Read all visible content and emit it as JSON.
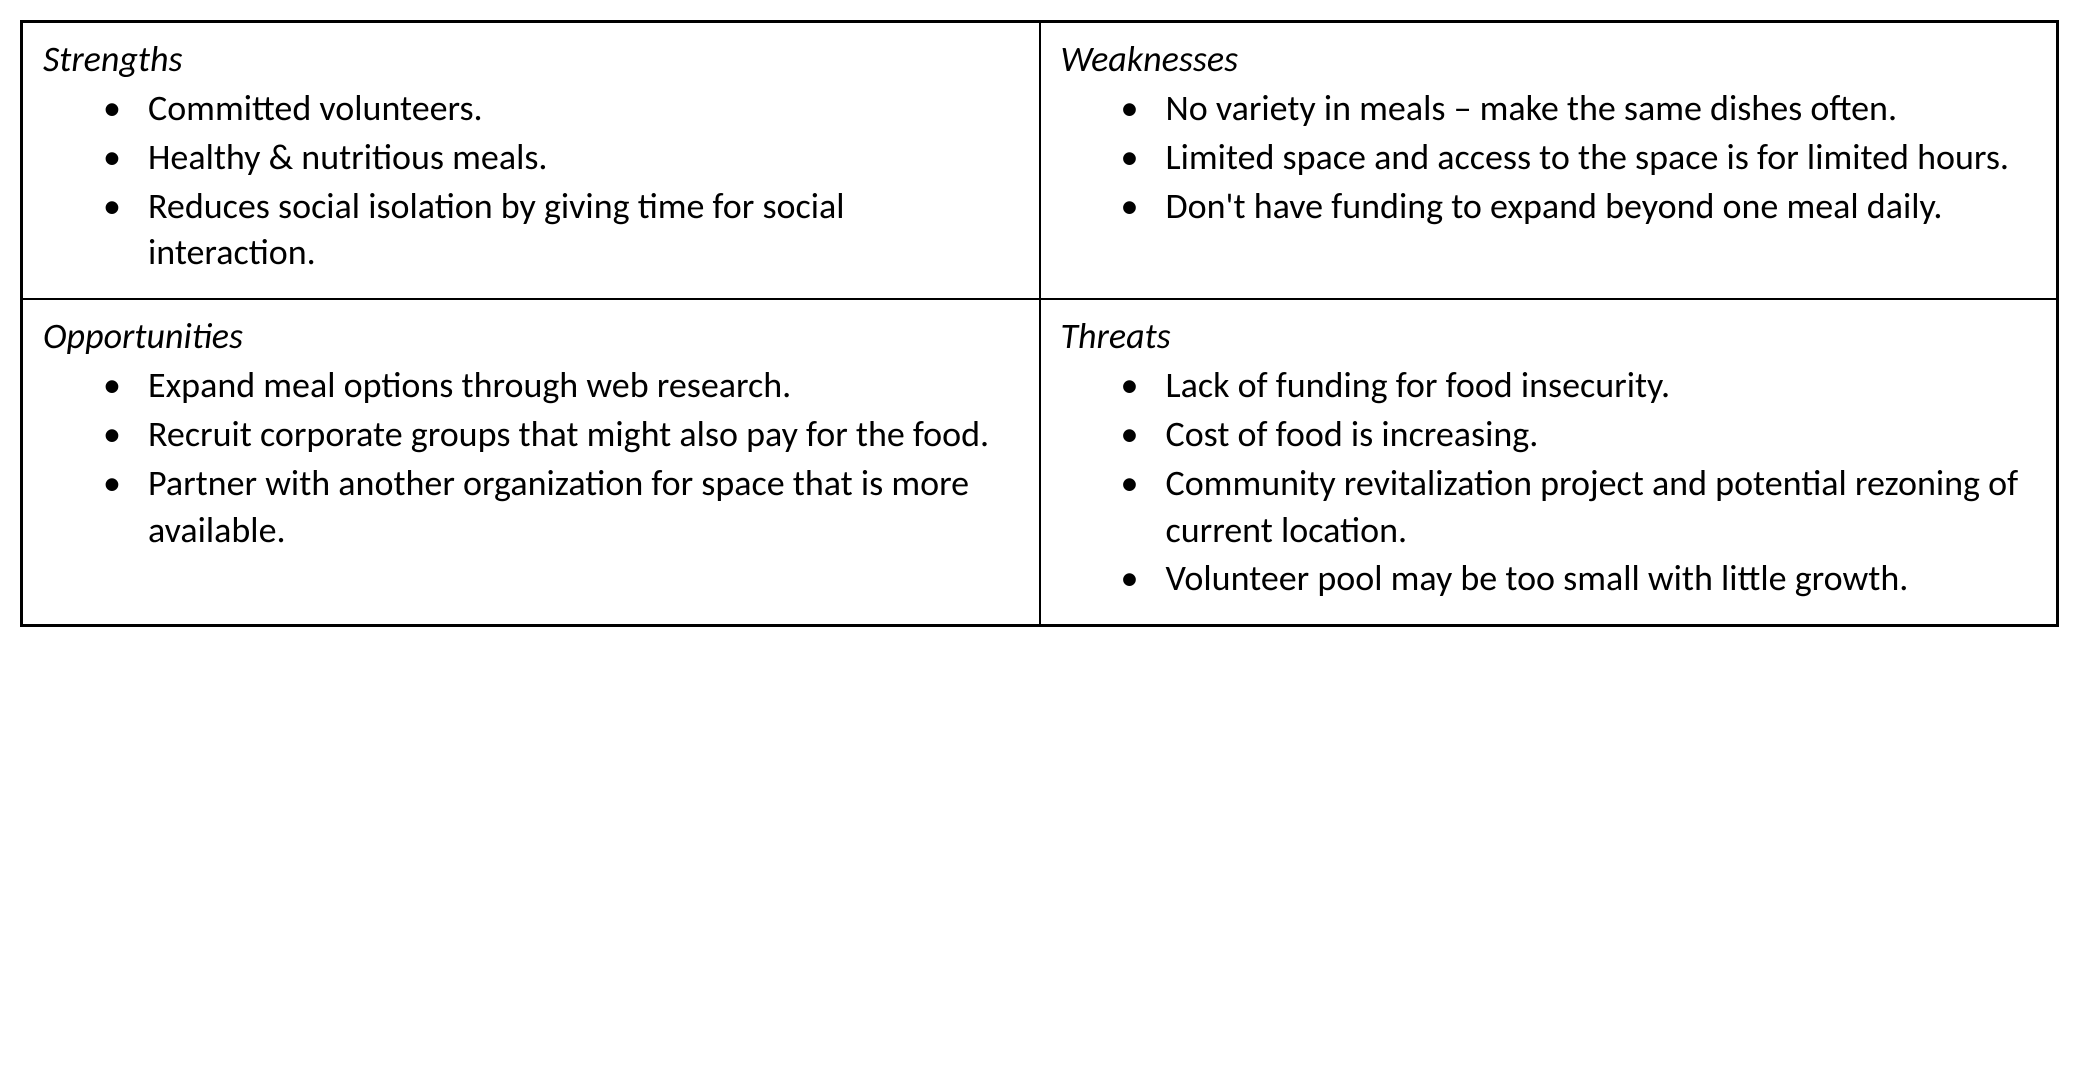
{
  "swot": {
    "type": "table",
    "structure": "2x2-grid",
    "background_color": "#ffffff",
    "border_color": "#000000",
    "border_width_outer": 3,
    "border_width_inner": 1.5,
    "title_fontsize": 36,
    "title_fontstyle": "italic",
    "body_fontsize": 36,
    "text_color": "#000000",
    "bullet_char": "•",
    "cells": {
      "strengths": {
        "title": "Strengths",
        "items": [
          "Committed volunteers.",
          "Healthy & nutritious meals.",
          "Reduces social isolation by giving time for social interaction."
        ]
      },
      "weaknesses": {
        "title": "Weaknesses",
        "items": [
          "No variety in meals – make the same dishes often.",
          "Limited space and access to the space is for limited hours.",
          "Don't have funding to expand beyond one meal daily."
        ]
      },
      "opportunities": {
        "title": "Opportunities",
        "items": [
          "Expand meal options through web research.",
          "Recruit corporate groups that might also pay for the food.",
          "Partner with another organization for space that is more available."
        ]
      },
      "threats": {
        "title": "Threats",
        "items": [
          "Lack of funding for food insecurity.",
          "Cost of food is increasing.",
          "Community revitalization project and potential rezoning of current location.",
          "Volunteer pool may be too small with little growth."
        ]
      }
    }
  }
}
